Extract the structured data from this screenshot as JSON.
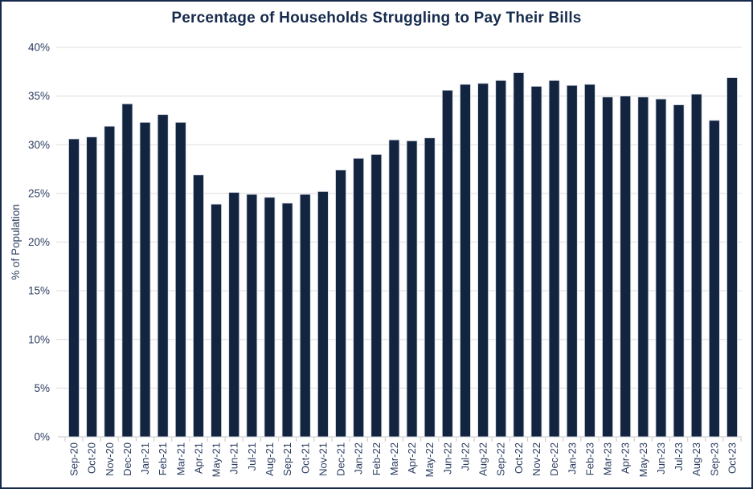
{
  "page": {
    "background": "#ffffff",
    "border_color": "#15294b"
  },
  "chart_data": {
    "type": "bar",
    "title": "Percentage of Households Struggling to Pay Their Bills",
    "xlabel": "",
    "ylabel": "% of Population",
    "ylim": [
      0,
      40
    ],
    "ytick_step": 5,
    "ytick_labels": [
      "0%",
      "5%",
      "10%",
      "15%",
      "20%",
      "25%",
      "30%",
      "35%",
      "40%"
    ],
    "grid": true,
    "legend": false,
    "x_labels_rotated_90": true,
    "categories": [
      "Sep-20",
      "Oct-20",
      "Nov-20",
      "Dec-20",
      "Jan-21",
      "Feb-21",
      "Mar-21",
      "Apr-21",
      "May-21",
      "Jun-21",
      "Jul-21",
      "Aug-21",
      "Sep-21",
      "Oct-21",
      "Nov-21",
      "Dec-21",
      "Jan-22",
      "Feb-22",
      "Mar-22",
      "Apr-22",
      "May-22",
      "Jun-22",
      "Jul-22",
      "Aug-22",
      "Sep-22",
      "Oct-22",
      "Nov-22",
      "Dec-22",
      "Jan-23",
      "Feb-23",
      "Mar-23",
      "Apr-23",
      "May-23",
      "Jun-23",
      "Jul-23",
      "Aug-23",
      "Sep-23",
      "Oct-23"
    ],
    "values": [
      30.6,
      30.8,
      31.9,
      34.2,
      32.3,
      33.1,
      32.3,
      26.9,
      23.9,
      25.1,
      24.9,
      24.6,
      24.0,
      24.9,
      25.2,
      27.4,
      28.6,
      29.0,
      30.5,
      30.4,
      30.7,
      35.6,
      36.2,
      36.3,
      36.6,
      37.4,
      36.0,
      36.6,
      36.1,
      36.2,
      34.9,
      35.0,
      34.9,
      34.7,
      34.1,
      35.2,
      32.5,
      36.9
    ],
    "colors": {
      "bar": "#132441",
      "bar_edge": "#d7dbe4",
      "title": "#162b4d",
      "axis_text": "#2b3d60",
      "gridline": "#e3e3e3",
      "axis_line": "#d9d9d9",
      "tick": "#cfcfcf"
    }
  }
}
